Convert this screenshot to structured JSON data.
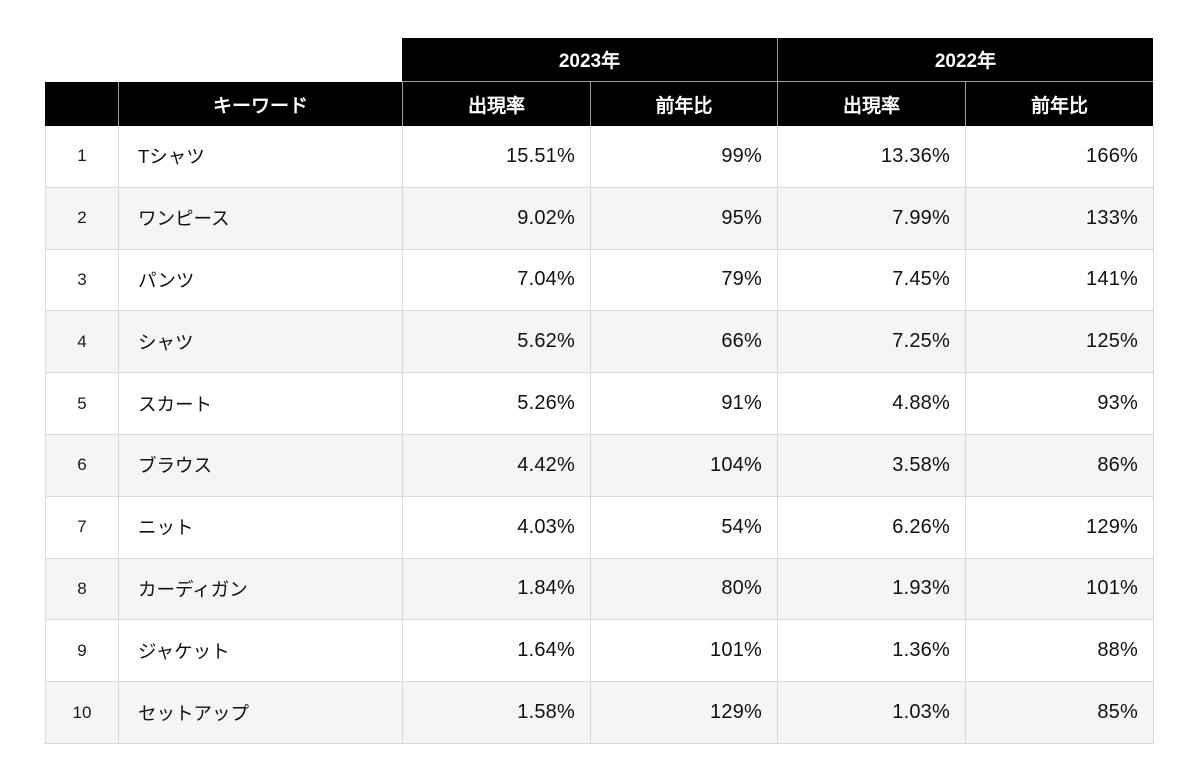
{
  "table": {
    "year_headers": [
      "2023年",
      "2022年"
    ],
    "corner_label": "",
    "keyword_column_label": "キーワード",
    "sub_columns": [
      "出現率",
      "前年比",
      "出現率",
      "前年比"
    ]
  },
  "chart_data": {
    "type": "table",
    "title": "",
    "column_groups": [
      {
        "label": "2023年",
        "span": [
          "出現率",
          "前年比"
        ]
      },
      {
        "label": "2022年",
        "span": [
          "出現率",
          "前年比"
        ]
      }
    ],
    "columns": [
      "",
      "キーワード",
      "2023年 出現率",
      "2023年 前年比",
      "2022年 出現率",
      "2022年 前年比"
    ],
    "rows": [
      [
        "1",
        "Tシャツ",
        "15.51%",
        "99%",
        "13.36%",
        "166%"
      ],
      [
        "2",
        "ワンピース",
        "9.02%",
        "95%",
        "7.99%",
        "133%"
      ],
      [
        "3",
        "パンツ",
        "7.04%",
        "79%",
        "7.45%",
        "141%"
      ],
      [
        "4",
        "シャツ",
        "5.62%",
        "66%",
        "7.25%",
        "125%"
      ],
      [
        "5",
        "スカート",
        "5.26%",
        "91%",
        "4.88%",
        "93%"
      ],
      [
        "6",
        "ブラウス",
        "4.42%",
        "104%",
        "3.58%",
        "86%"
      ],
      [
        "7",
        "ニット",
        "4.03%",
        "54%",
        "6.26%",
        "129%"
      ],
      [
        "8",
        "カーディガン",
        "1.84%",
        "80%",
        "1.93%",
        "101%"
      ],
      [
        "9",
        "ジャケット",
        "1.64%",
        "101%",
        "1.36%",
        "88%"
      ],
      [
        "10",
        "セットアップ",
        "1.58%",
        "129%",
        "1.03%",
        "85%"
      ]
    ],
    "colors": {
      "header_bg": "#000000",
      "header_text": "#ffffff",
      "header_separator": "#9e9e9e",
      "body_border": "#d9d9d9",
      "stripe_bg": "#f5f5f6",
      "text": "#111111"
    },
    "layout": {
      "stripe_rows": "even",
      "value_alignment": "right"
    }
  }
}
